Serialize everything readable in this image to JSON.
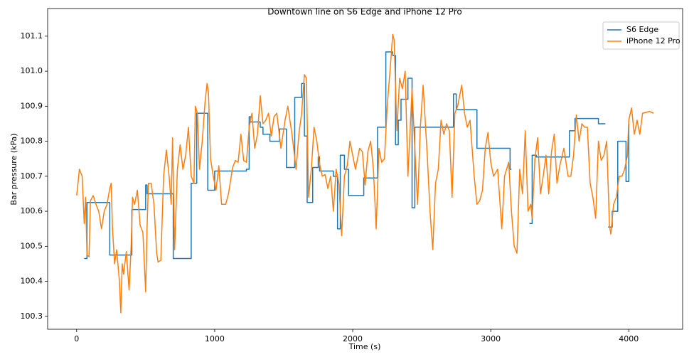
{
  "chart_data": {
    "type": "line",
    "title": "Downtown line on S6 Edge and iPhone 12 Pro",
    "x_label": "Time (s)",
    "y_label": "Bar pressure (kPa)",
    "xlim": [
      -210,
      4390
    ],
    "ylim": [
      100.263,
      101.179
    ],
    "xticks": [
      0,
      1000,
      2000,
      3000,
      4000
    ],
    "yticks": [
      100.3,
      100.4,
      100.5,
      100.6,
      100.7,
      100.8,
      100.9,
      {
        "value": 101,
        "label": "101.0"
      },
      101.1
    ],
    "legend": "upper right",
    "series": [
      {
        "name": "S6 Edge",
        "color": "#1f77b4",
        "x": [
          55,
          75,
          75,
          240,
          240,
          400,
          400,
          500,
          500,
          510,
          510,
          700,
          700,
          830,
          830,
          870,
          870,
          950,
          950,
          1000,
          1000,
          1230,
          1230,
          1250,
          1250,
          1260,
          1260,
          1330,
          1330,
          1350,
          1350,
          1400,
          1400,
          1470,
          1470,
          1520,
          1520,
          1580,
          1580,
          1630,
          1630,
          1650,
          1650,
          1670,
          1670,
          1710,
          1710,
          1750,
          1750,
          1760,
          1760,
          1860,
          1860,
          1890,
          1890,
          1910,
          1910,
          1940,
          1940,
          1970,
          1970,
          2080,
          2080,
          2180,
          2180,
          2240,
          2240,
          2290,
          2290,
          2310,
          2310,
          2330,
          2330,
          2350,
          2350,
          2400,
          2400,
          2430,
          2430,
          2450,
          2450,
          2730,
          2730,
          2750,
          2750,
          2900,
          2900,
          3140,
          3140,
          3150,
          null,
          3280,
          3300,
          3300,
          3330,
          3330,
          3570,
          3570,
          3610,
          3610,
          3780,
          3780,
          3830,
          null,
          3850,
          3880,
          3880,
          3920,
          3920,
          3980,
          3980,
          4000,
          4000
        ],
        "values": [
          100.465,
          100.465,
          100.625,
          100.625,
          100.475,
          100.475,
          100.605,
          100.605,
          100.675,
          100.675,
          100.65,
          100.65,
          100.465,
          100.465,
          100.68,
          100.68,
          100.88,
          100.88,
          100.66,
          100.66,
          100.715,
          100.715,
          100.72,
          100.72,
          100.87,
          100.87,
          100.855,
          100.855,
          100.84,
          100.84,
          100.82,
          100.82,
          100.8,
          100.8,
          100.835,
          100.835,
          100.725,
          100.725,
          100.925,
          100.925,
          100.965,
          100.965,
          100.815,
          100.815,
          100.625,
          100.625,
          100.725,
          100.725,
          100.755,
          100.755,
          100.715,
          100.715,
          100.7,
          100.7,
          100.55,
          100.55,
          100.76,
          100.76,
          100.72,
          100.72,
          100.645,
          100.645,
          100.695,
          100.695,
          100.84,
          100.84,
          101.055,
          101.055,
          101.045,
          101.045,
          100.79,
          100.79,
          100.86,
          100.86,
          100.92,
          100.92,
          100.98,
          100.98,
          100.61,
          100.61,
          100.84,
          100.84,
          100.935,
          100.935,
          100.89,
          100.89,
          100.78,
          100.78,
          100.72,
          100.72,
          null,
          100.565,
          100.565,
          100.76,
          100.76,
          100.755,
          100.755,
          100.83,
          100.83,
          100.865,
          100.865,
          100.85,
          100.85,
          null,
          100.555,
          100.555,
          100.6,
          100.6,
          100.8,
          100.8,
          100.685,
          100.685,
          100.85
        ]
      },
      {
        "name": "iPhone 12 Pro",
        "color": "#ff7f0e",
        "x": [
          0,
          10,
          20,
          40,
          55,
          65,
          75,
          90,
          100,
          120,
          140,
          160,
          180,
          200,
          220,
          240,
          250,
          260,
          275,
          290,
          310,
          320,
          330,
          340,
          360,
          380,
          395,
          405,
          420,
          440,
          460,
          480,
          500,
          510,
          520,
          540,
          560,
          580,
          590,
          610,
          630,
          650,
          670,
          685,
          695,
          710,
          730,
          750,
          770,
          790,
          810,
          830,
          850,
          860,
          875,
          890,
          910,
          930,
          945,
          955,
          970,
          990,
          1010,
          1030,
          1050,
          1080,
          1100,
          1130,
          1150,
          1170,
          1190,
          1210,
          1230,
          1250,
          1270,
          1290,
          1310,
          1330,
          1350,
          1370,
          1390,
          1410,
          1430,
          1450,
          1480,
          1510,
          1530,
          1560,
          1590,
          1610,
          1630,
          1650,
          1665,
          1680,
          1700,
          1720,
          1740,
          1760,
          1780,
          1800,
          1820,
          1840,
          1860,
          1880,
          1900,
          1920,
          1940,
          1960,
          1980,
          2000,
          2020,
          2050,
          2070,
          2090,
          2110,
          2130,
          2150,
          2170,
          2190,
          2210,
          2230,
          2250,
          2270,
          2290,
          2300,
          2320,
          2340,
          2360,
          2380,
          2400,
          2430,
          2450,
          2470,
          2490,
          2510,
          2540,
          2560,
          2580,
          2600,
          2620,
          2640,
          2660,
          2680,
          2700,
          2720,
          2740,
          2760,
          2790,
          2810,
          2830,
          2850,
          2880,
          2900,
          2920,
          2940,
          2960,
          2980,
          3000,
          3020,
          3050,
          3080,
          3100,
          3130,
          3150,
          3170,
          3190,
          3210,
          3230,
          3250,
          3270,
          3290,
          3300,
          3320,
          3340,
          3360,
          3380,
          3400,
          3420,
          3440,
          3460,
          3480,
          3500,
          3530,
          3560,
          3580,
          3600,
          3620,
          3640,
          3660,
          3680,
          3700,
          3720,
          3740,
          3760,
          3780,
          3800,
          3820,
          3840,
          3860,
          3870,
          3890,
          3910,
          3930,
          3950,
          3970,
          3990,
          4000,
          4020,
          4040,
          4060,
          4080,
          4100,
          4150,
          4180
        ],
        "values": [
          100.645,
          100.68,
          100.72,
          100.7,
          100.565,
          100.64,
          100.475,
          100.47,
          100.63,
          100.645,
          100.62,
          100.6,
          100.55,
          100.6,
          100.62,
          100.665,
          100.68,
          100.55,
          100.45,
          100.49,
          100.4,
          100.31,
          100.45,
          100.42,
          100.485,
          100.375,
          100.5,
          100.64,
          100.62,
          100.66,
          100.56,
          100.54,
          100.37,
          100.55,
          100.68,
          100.68,
          100.62,
          100.48,
          100.455,
          100.46,
          100.7,
          100.775,
          100.7,
          100.62,
          100.81,
          100.49,
          100.72,
          100.79,
          100.72,
          100.76,
          100.84,
          100.7,
          100.68,
          100.9,
          100.88,
          100.72,
          100.8,
          100.91,
          100.965,
          100.94,
          100.75,
          100.7,
          100.66,
          100.73,
          100.62,
          100.62,
          100.65,
          100.725,
          100.745,
          100.74,
          100.82,
          100.745,
          100.74,
          100.84,
          100.88,
          100.78,
          100.82,
          100.93,
          100.85,
          100.86,
          100.88,
          100.815,
          100.87,
          100.88,
          100.78,
          100.86,
          100.9,
          100.82,
          100.72,
          100.82,
          100.88,
          100.99,
          100.98,
          100.64,
          100.72,
          100.84,
          100.8,
          100.735,
          100.7,
          100.705,
          100.665,
          100.7,
          100.6,
          100.72,
          100.68,
          100.53,
          100.7,
          100.73,
          100.8,
          100.76,
          100.72,
          100.78,
          100.77,
          100.675,
          100.77,
          100.8,
          100.72,
          100.55,
          100.78,
          100.74,
          100.75,
          100.9,
          101.0,
          101.105,
          101.09,
          100.83,
          100.98,
          100.95,
          101.0,
          100.7,
          100.95,
          100.78,
          100.62,
          100.84,
          100.96,
          100.76,
          100.6,
          100.49,
          100.68,
          100.72,
          100.86,
          100.82,
          100.85,
          100.83,
          100.64,
          100.88,
          100.9,
          100.96,
          100.88,
          100.84,
          100.86,
          100.7,
          100.62,
          100.63,
          100.66,
          100.78,
          100.825,
          100.74,
          100.7,
          100.72,
          100.55,
          100.7,
          100.74,
          100.6,
          100.5,
          100.48,
          100.72,
          100.65,
          100.83,
          100.6,
          100.62,
          100.58,
          100.75,
          100.81,
          100.65,
          100.7,
          100.76,
          100.65,
          100.77,
          100.82,
          100.68,
          100.73,
          100.78,
          100.7,
          100.7,
          100.76,
          100.875,
          100.8,
          100.85,
          100.84,
          100.84,
          100.68,
          100.64,
          100.58,
          100.8,
          100.745,
          100.76,
          100.8,
          100.56,
          100.535,
          100.62,
          100.64,
          100.7,
          100.7,
          100.72,
          100.76,
          100.86,
          100.895,
          100.82,
          100.86,
          100.82,
          100.88,
          100.885,
          100.88
        ]
      }
    ]
  }
}
